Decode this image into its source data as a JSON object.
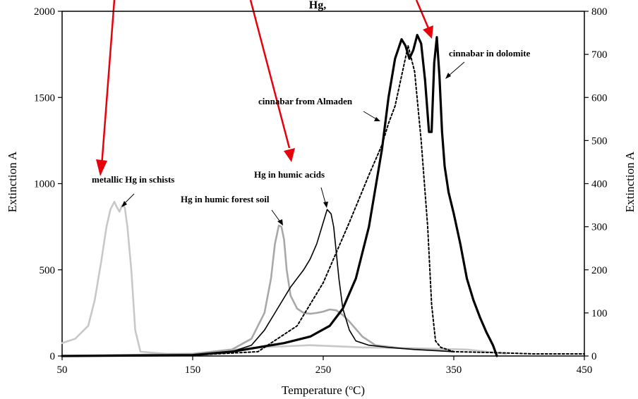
{
  "chart_data": {
    "type": "line",
    "title": "",
    "top_partial_label": "Hg, ",
    "xlabel": "Temperature (",
    "xlabel_sup": "o",
    "xlabel_end": "C)",
    "ylabel_left": "Extinction A",
    "ylabel_right": "Extinction A",
    "xlim": [
      50,
      450
    ],
    "ylim_left": [
      0,
      2000
    ],
    "ylim_right": [
      0,
      800
    ],
    "x_ticks": [
      50,
      150,
      250,
      350,
      450
    ],
    "y_ticks_left": [
      0,
      500,
      1000,
      1500,
      2000
    ],
    "y_ticks_right": [
      0,
      100,
      200,
      300,
      400,
      500,
      600,
      700,
      800
    ],
    "grid": false,
    "annotations": [
      {
        "text": "metallic Hg in schists"
      },
      {
        "text": "Hg in humic forest soil"
      },
      {
        "text": "Hg in humic acids"
      },
      {
        "text": "cinnabar from Almaden"
      },
      {
        "text": "cinnabar in dolomite"
      }
    ],
    "series": [
      {
        "key": "metallic",
        "axis": "right",
        "color": "#c8c8c8",
        "style": "solid",
        "x": [
          50,
          60,
          70,
          75,
          80,
          84,
          87,
          90,
          92,
          94,
          96,
          98,
          100,
          103,
          106,
          110,
          130,
          150,
          200,
          240,
          280,
          320,
          360,
          390
        ],
        "y": [
          30,
          40,
          70,
          130,
          220,
          300,
          340,
          358,
          345,
          335,
          350,
          345,
          300,
          200,
          60,
          10,
          5,
          5,
          20,
          25,
          20,
          18,
          15,
          5
        ]
      },
      {
        "key": "forest_soil",
        "axis": "right",
        "color": "#a8a8a8",
        "style": "solid",
        "x": [
          50,
          150,
          180,
          195,
          205,
          210,
          213,
          216,
          218,
          220,
          222,
          225,
          230,
          235,
          240,
          245,
          250,
          255,
          260,
          265,
          270,
          280,
          290,
          310,
          330,
          350
        ],
        "y": [
          0,
          5,
          15,
          40,
          100,
          180,
          260,
          303,
          300,
          270,
          200,
          140,
          110,
          100,
          98,
          100,
          103,
          108,
          106,
          95,
          80,
          45,
          25,
          18,
          15,
          10
        ]
      },
      {
        "key": "humic_acids",
        "axis": "right",
        "color": "#000000",
        "style": "thin",
        "x": [
          50,
          150,
          180,
          195,
          205,
          215,
          225,
          235,
          240,
          245,
          250,
          253,
          256,
          258,
          260,
          262,
          265,
          270,
          275,
          285,
          300,
          320,
          350
        ],
        "y": [
          0,
          3,
          10,
          25,
          60,
          110,
          160,
          200,
          225,
          260,
          310,
          340,
          330,
          300,
          240,
          180,
          110,
          60,
          35,
          25,
          20,
          15,
          10
        ]
      },
      {
        "key": "almaden",
        "axis": "right",
        "color": "#000000",
        "style": "dotted",
        "x": [
          50,
          150,
          200,
          230,
          250,
          270,
          285,
          295,
          300,
          305,
          310,
          315,
          320,
          325,
          330,
          333,
          336,
          340,
          350,
          380,
          410,
          450
        ],
        "y": [
          0,
          2,
          10,
          70,
          170,
          310,
          420,
          490,
          540,
          580,
          650,
          720,
          660,
          500,
          300,
          120,
          35,
          20,
          10,
          8,
          5,
          5
        ]
      },
      {
        "key": "dolomite",
        "axis": "right",
        "color": "#000000",
        "style": "bold",
        "x": [
          50,
          150,
          180,
          200,
          220,
          240,
          255,
          265,
          275,
          285,
          295,
          300,
          305,
          310,
          313,
          316,
          319,
          322,
          325,
          328,
          331,
          333,
          335,
          337,
          339,
          341,
          343,
          346,
          350,
          355,
          360,
          365,
          370,
          375,
          380,
          383
        ],
        "y": [
          0,
          2,
          10,
          20,
          30,
          45,
          70,
          110,
          180,
          300,
          480,
          600,
          690,
          735,
          720,
          690,
          710,
          745,
          725,
          640,
          520,
          520,
          680,
          740,
          650,
          520,
          440,
          380,
          330,
          260,
          180,
          130,
          90,
          55,
          25,
          0
        ]
      }
    ],
    "colors": {
      "arrow": "#e8000b",
      "text": "#000000"
    }
  }
}
